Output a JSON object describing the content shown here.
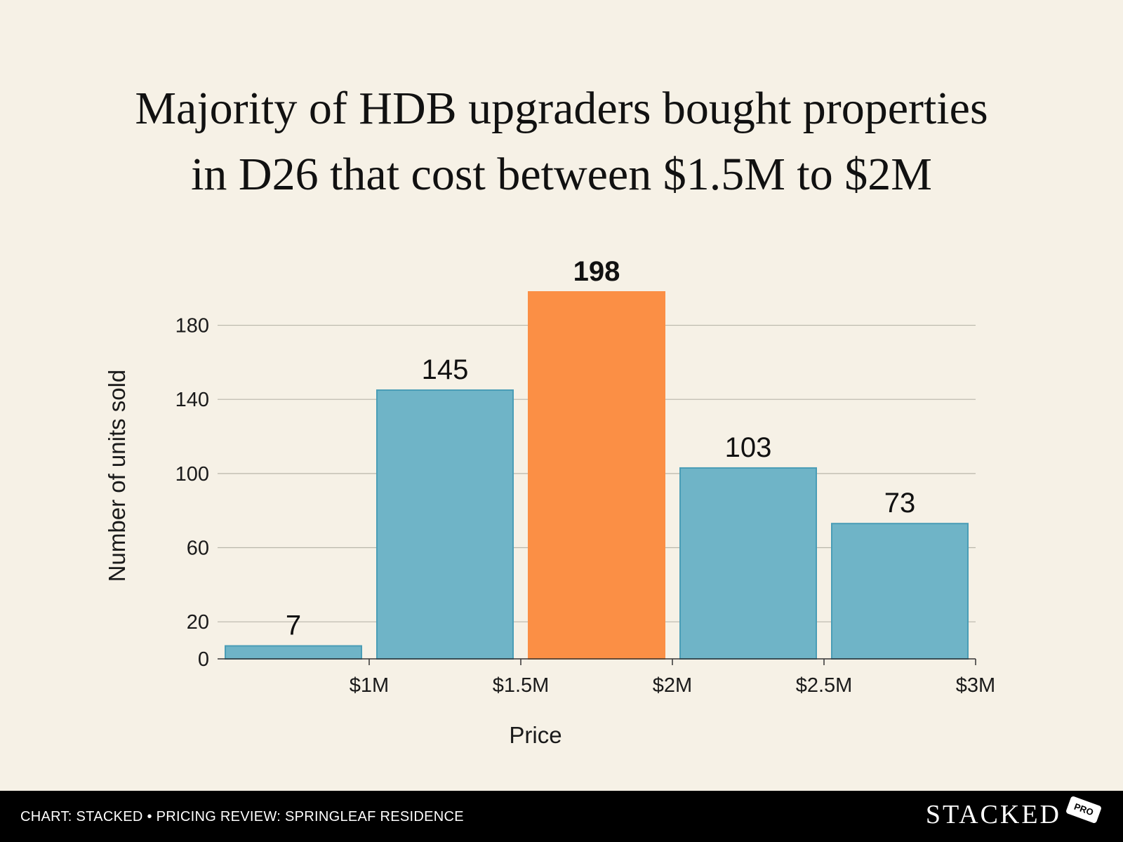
{
  "title": {
    "line1": "Majority of HDB upgraders bought properties",
    "line2": "in D26 that cost between $1.5M to $2M"
  },
  "chart_data": {
    "type": "bar",
    "title": "Majority of HDB upgraders bought properties in D26 that cost between $1.5M to $2M",
    "xlabel": "Price",
    "ylabel": "Number of units sold",
    "x_ticks": [
      "$1M",
      "$1.5M",
      "$2M",
      "$2.5M",
      "$3M"
    ],
    "y_ticks": [
      0,
      20,
      60,
      100,
      140,
      180
    ],
    "ylim": [
      0,
      198
    ],
    "bins": [
      {
        "from": 0.5,
        "to": 1.0,
        "value": 7,
        "highlight": false
      },
      {
        "from": 1.0,
        "to": 1.5,
        "value": 145,
        "highlight": false
      },
      {
        "from": 1.5,
        "to": 2.0,
        "value": 198,
        "highlight": true
      },
      {
        "from": 2.0,
        "to": 2.5,
        "value": 103,
        "highlight": false
      },
      {
        "from": 2.5,
        "to": 3.0,
        "value": 73,
        "highlight": false
      }
    ],
    "colors": {
      "bar": "#6fb4c7",
      "bar_edge": "#4a9db6",
      "highlight": "#fb8f45",
      "grid": "#b9b6aa"
    },
    "grid": true,
    "legend": "none"
  },
  "footer": {
    "source": "CHART: STACKED • PRICING REVIEW: SPRINGLEAF RESIDENCE",
    "brand": "STACKED",
    "badge": "PRO"
  }
}
